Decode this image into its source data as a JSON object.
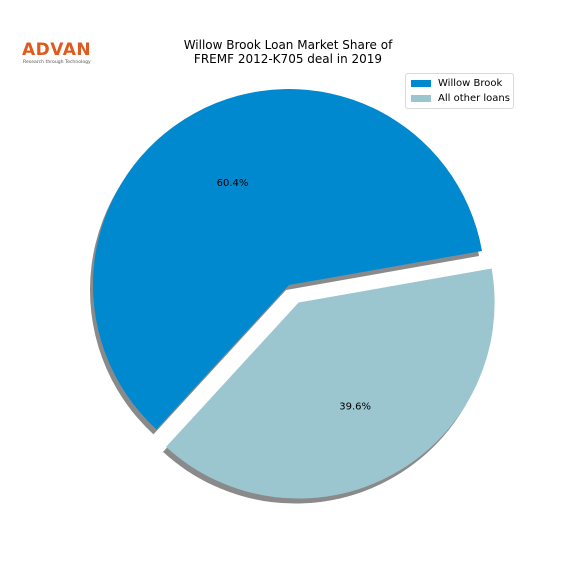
{
  "logo": {
    "name": "ADVAN",
    "tagline": "Research through Technology",
    "color": "#e05a1e"
  },
  "chart_data": {
    "type": "pie",
    "title_lines": [
      "Willow Brook Loan Market Share of",
      "FREMF 2012-K705 deal in 2019"
    ],
    "labels": [
      "Willow Brook",
      "All other loans"
    ],
    "values": [
      60.4,
      39.6
    ],
    "pct_labels": [
      "60.4%",
      "39.6%"
    ],
    "colors": [
      "#0089cf",
      "#9bc6cf"
    ],
    "exploded": [
      false,
      true
    ],
    "shadow": true,
    "legend_position": "top-right"
  }
}
